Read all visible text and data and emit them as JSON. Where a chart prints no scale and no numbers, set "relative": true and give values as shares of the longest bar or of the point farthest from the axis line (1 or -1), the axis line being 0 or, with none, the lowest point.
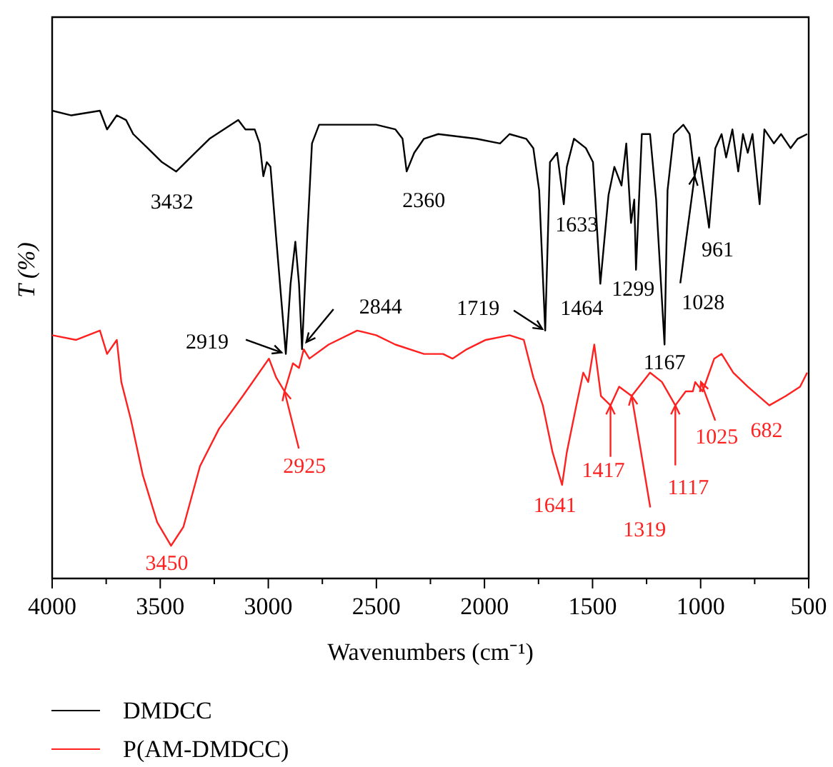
{
  "chart_data": {
    "type": "line",
    "relative": true,
    "xlabel": "Wavenumbers (cm⁻¹)",
    "ylabel": "T (%)",
    "legend": "bottom",
    "xlim": [
      4000,
      500
    ],
    "xticks": [
      4000,
      {
        "value": 3750,
        "label": null
      },
      3500,
      {
        "value": 3250,
        "label": null
      },
      3000,
      {
        "value": 2750,
        "label": null
      },
      2500,
      {
        "value": 2250,
        "label": null
      },
      2000,
      {
        "value": 1750,
        "label": null
      },
      1500,
      {
        "value": 1250,
        "label": null
      },
      1000,
      {
        "value": 750,
        "label": null
      },
      500
    ],
    "series": [
      {
        "name": "DMDCC",
        "color": "#000000",
        "x": [
          4000,
          3911,
          3779,
          3746,
          3701,
          3658,
          3625,
          3558,
          3492,
          3426,
          3338,
          3272,
          3139,
          3106,
          3063,
          3040,
          3023,
          3007,
          2990,
          2964,
          2919,
          2897,
          2875,
          2858,
          2844,
          2820,
          2798,
          2765,
          2721,
          2633,
          2501,
          2412,
          2379,
          2360,
          2325,
          2280,
          2214,
          2038,
          1928,
          1884,
          1807,
          1774,
          1747,
          1719,
          1697,
          1664,
          1633,
          1619,
          1586,
          1531,
          1498,
          1464,
          1426,
          1399,
          1366,
          1344,
          1322,
          1307,
          1299,
          1272,
          1234,
          1206,
          1167,
          1153,
          1124,
          1080,
          1051,
          1028,
          1007,
          961,
          932,
          903,
          882,
          853,
          826,
          804,
          782,
          760,
          727,
          705,
          661,
          628,
          584,
          551,
          507
        ],
        "values": [
          1.0,
          0.99,
          1.0,
          0.96,
          0.99,
          0.98,
          0.95,
          0.92,
          0.89,
          0.87,
          0.91,
          0.94,
          0.98,
          0.96,
          0.96,
          0.93,
          0.86,
          0.89,
          0.88,
          0.73,
          0.48,
          0.63,
          0.72,
          0.63,
          0.49,
          0.73,
          0.93,
          0.97,
          0.97,
          0.97,
          0.97,
          0.96,
          0.94,
          0.87,
          0.91,
          0.94,
          0.95,
          0.94,
          0.93,
          0.95,
          0.94,
          0.92,
          0.83,
          0.53,
          0.89,
          0.91,
          0.8,
          0.88,
          0.94,
          0.92,
          0.89,
          0.63,
          0.82,
          0.88,
          0.84,
          0.93,
          0.76,
          0.81,
          0.66,
          0.95,
          0.95,
          0.81,
          0.5,
          0.83,
          0.95,
          0.97,
          0.95,
          0.86,
          0.9,
          0.75,
          0.92,
          0.95,
          0.9,
          0.96,
          0.87,
          0.95,
          0.91,
          0.95,
          0.8,
          0.96,
          0.93,
          0.95,
          0.92,
          0.94,
          0.95
        ]
      },
      {
        "name": "P(AM-DMDCC)",
        "color": "#ff2020",
        "x": [
          4000,
          3889,
          3779,
          3746,
          3701,
          3680,
          3636,
          3580,
          3514,
          3450,
          3393,
          3316,
          3228,
          3118,
          2997,
          2964,
          2925,
          2886,
          2858,
          2836,
          2810,
          2721,
          2589,
          2501,
          2412,
          2280,
          2192,
          2148,
          2082,
          1994,
          1884,
          1818,
          1774,
          1730,
          1685,
          1641,
          1619,
          1575,
          1543,
          1520,
          1492,
          1461,
          1417,
          1377,
          1319,
          1234,
          1179,
          1117,
          1069,
          1036,
          1025,
          991,
          937,
          903,
          849,
          782,
          682,
          606,
          540,
          507
        ],
        "values": [
          0.52,
          0.51,
          0.53,
          0.48,
          0.51,
          0.42,
          0.34,
          0.22,
          0.12,
          0.07,
          0.11,
          0.24,
          0.32,
          0.39,
          0.47,
          0.43,
          0.4,
          0.46,
          0.45,
          0.49,
          0.47,
          0.5,
          0.53,
          0.52,
          0.5,
          0.48,
          0.48,
          0.47,
          0.49,
          0.51,
          0.52,
          0.51,
          0.43,
          0.37,
          0.27,
          0.2,
          0.27,
          0.37,
          0.44,
          0.42,
          0.5,
          0.39,
          0.37,
          0.41,
          0.39,
          0.44,
          0.42,
          0.37,
          0.4,
          0.4,
          0.42,
          0.4,
          0.47,
          0.48,
          0.44,
          0.41,
          0.37,
          0.39,
          0.41,
          0.44
        ]
      }
    ],
    "annotations": [
      {
        "text": "3432",
        "x": 3426,
        "y": 0.87
      },
      {
        "text": "2360",
        "x": 2360,
        "y": 0.87
      },
      {
        "text": "2919",
        "x": 2919,
        "y": 0.48
      },
      {
        "text": "2844",
        "x": 2844,
        "y": 0.49
      },
      {
        "text": "1719",
        "x": 1719,
        "y": 0.53
      },
      {
        "text": "1633",
        "x": 1633,
        "y": 0.8
      },
      {
        "text": "1464",
        "x": 1464,
        "y": 0.63
      },
      {
        "text": "1299",
        "x": 1299,
        "y": 0.66
      },
      {
        "text": "1167",
        "x": 1167,
        "y": 0.5
      },
      {
        "text": "1028",
        "x": 1028,
        "y": 0.86
      },
      {
        "text": "961",
        "x": 961,
        "y": 0.75
      },
      {
        "text": "3450",
        "x": 3450,
        "y": 0.07
      },
      {
        "text": "2925",
        "x": 2925,
        "y": 0.4
      },
      {
        "text": "1641",
        "x": 1641,
        "y": 0.2
      },
      {
        "text": "1417",
        "x": 1417,
        "y": 0.37
      },
      {
        "text": "1319",
        "x": 1319,
        "y": 0.39
      },
      {
        "text": "1117",
        "x": 1117,
        "y": 0.37
      },
      {
        "text": "1025",
        "x": 1025,
        "y": 0.42
      },
      {
        "text": "682",
        "x": 682,
        "y": 0.37
      }
    ]
  }
}
